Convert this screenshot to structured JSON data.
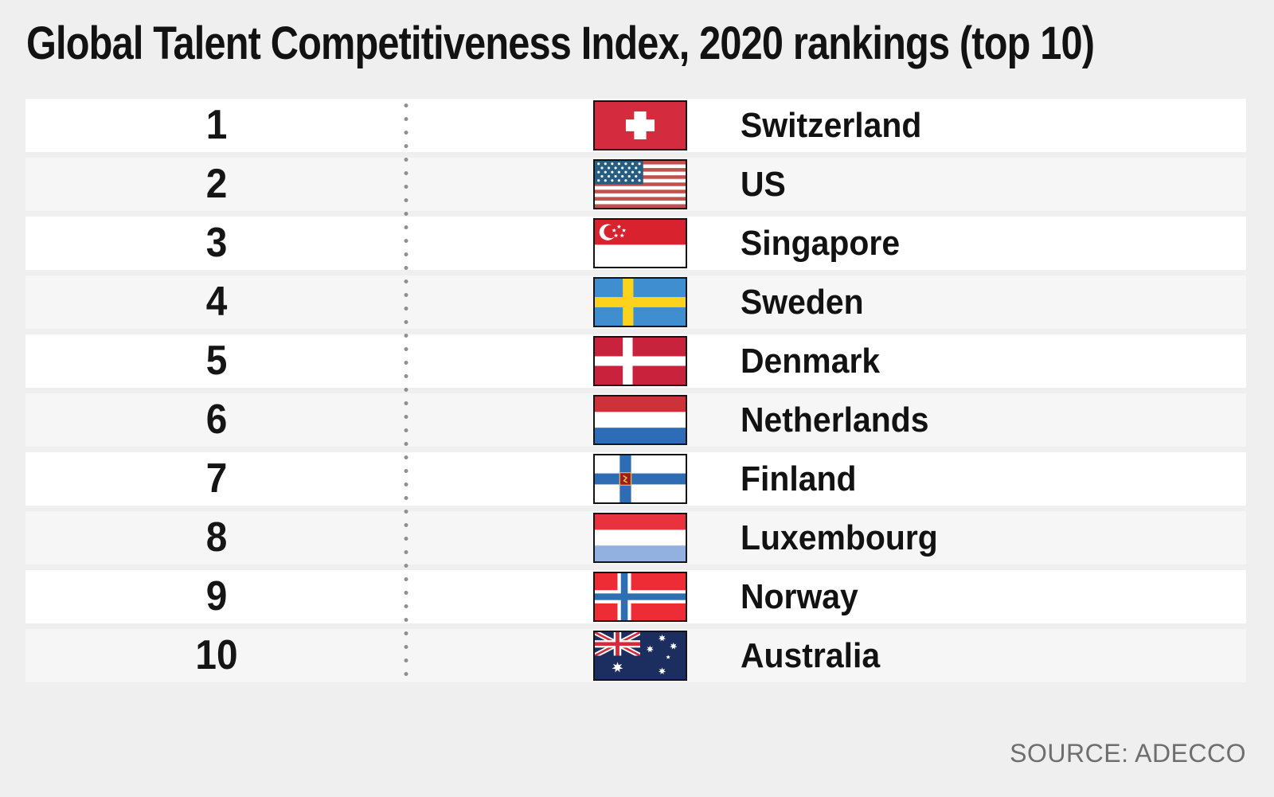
{
  "title": "Global Talent Competitiveness Index, 2020 rankings (top 10)",
  "source": "SOURCE: ADECCO",
  "palette": {
    "background": "#efefef",
    "row_white": "#ffffff",
    "row_alt": "#f6f6f6",
    "text": "#121212",
    "source_text": "#6e6e6e",
    "divider_dots": "#8f8f8f",
    "flag_border": "#141414"
  },
  "rankings": [
    {
      "rank": "1",
      "country": "Switzerland",
      "flag": "switzerland",
      "flag_icon": "flag-switzerland-icon"
    },
    {
      "rank": "2",
      "country": "US",
      "flag": "us",
      "flag_icon": "flag-us-icon"
    },
    {
      "rank": "3",
      "country": "Singapore",
      "flag": "singapore",
      "flag_icon": "flag-singapore-icon"
    },
    {
      "rank": "4",
      "country": "Sweden",
      "flag": "sweden",
      "flag_icon": "flag-sweden-icon"
    },
    {
      "rank": "5",
      "country": "Denmark",
      "flag": "denmark",
      "flag_icon": "flag-denmark-icon"
    },
    {
      "rank": "6",
      "country": "Netherlands",
      "flag": "netherlands",
      "flag_icon": "flag-netherlands-icon"
    },
    {
      "rank": "7",
      "country": "Finland",
      "flag": "finland",
      "flag_icon": "flag-finland-icon"
    },
    {
      "rank": "8",
      "country": "Luxembourg",
      "flag": "luxembourg",
      "flag_icon": "flag-luxembourg-icon"
    },
    {
      "rank": "9",
      "country": "Norway",
      "flag": "norway",
      "flag_icon": "flag-norway-icon"
    },
    {
      "rank": "10",
      "country": "Australia",
      "flag": "australia",
      "flag_icon": "flag-australia-icon"
    }
  ],
  "chart_data": {
    "type": "table",
    "title": "Global Talent Competitiveness Index, 2020 rankings (top 10)",
    "columns": [
      "rank",
      "country"
    ],
    "rows": [
      [
        1,
        "Switzerland"
      ],
      [
        2,
        "US"
      ],
      [
        3,
        "Singapore"
      ],
      [
        4,
        "Sweden"
      ],
      [
        5,
        "Denmark"
      ],
      [
        6,
        "Netherlands"
      ],
      [
        7,
        "Finland"
      ],
      [
        8,
        "Luxembourg"
      ],
      [
        9,
        "Norway"
      ],
      [
        10,
        "Australia"
      ]
    ],
    "source": "SOURCE: ADECCO",
    "legend_position": "none",
    "grid": false
  }
}
